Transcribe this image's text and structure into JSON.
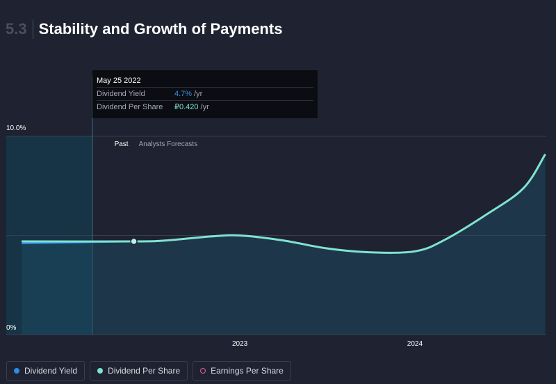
{
  "header": {
    "section_number": "5.3",
    "title": "Stability and Growth of Payments"
  },
  "tooltip": {
    "date": "May 25 2022",
    "rows": [
      {
        "label": "Dividend Yield",
        "value": "4.7%",
        "unit": "/yr"
      },
      {
        "label": "Dividend Per Share",
        "value": "₽0.420",
        "unit": "/yr"
      }
    ]
  },
  "legend": {
    "items": [
      {
        "label": "Dividend Yield",
        "color": "#2f8be3"
      },
      {
        "label": "Dividend Per Share",
        "color": "#7fe3d2"
      },
      {
        "label": "Earnings Per Share",
        "color": "#e0609b"
      }
    ]
  },
  "chart_data": {
    "type": "area",
    "y_ticks": [
      "10.0%",
      "0%"
    ],
    "x_ticks": [
      {
        "label": "2023",
        "date": "2023-01-01"
      },
      {
        "label": "2024",
        "date": "2024-01-01"
      }
    ],
    "regions": {
      "past": "Past",
      "forecast": "Analysts Forecasts",
      "split_date": "2022-05-25"
    },
    "ylim": [
      0,
      10
    ],
    "xlim": [
      "2021-09-01",
      "2024-10-01"
    ],
    "grid": true,
    "series": [
      {
        "name": "Dividend Yield",
        "color": "#2f8be3",
        "points": [
          {
            "date": "2021-10-03",
            "value": 4.6
          },
          {
            "date": "2022-05-25",
            "value": 4.7
          }
        ]
      },
      {
        "name": "Dividend Per Share",
        "color": "#7fe3d2",
        "points": [
          {
            "date": "2021-10-03",
            "value": 4.7
          },
          {
            "date": "2022-05-25",
            "value": 4.7
          },
          {
            "date": "2022-08-01",
            "value": 4.75
          },
          {
            "date": "2022-11-01",
            "value": 4.95
          },
          {
            "date": "2023-01-01",
            "value": 5.0
          },
          {
            "date": "2023-04-01",
            "value": 4.75
          },
          {
            "date": "2023-07-01",
            "value": 4.35
          },
          {
            "date": "2023-10-01",
            "value": 4.15
          },
          {
            "date": "2024-01-01",
            "value": 4.2
          },
          {
            "date": "2024-03-01",
            "value": 4.75
          },
          {
            "date": "2024-06-01",
            "value": 6.1
          },
          {
            "date": "2024-08-15",
            "value": 7.4
          },
          {
            "date": "2024-09-29",
            "value": 9.1
          }
        ]
      }
    ],
    "highlight": {
      "series": "Dividend Per Share",
      "date": "2022-05-25",
      "value": 4.7
    }
  }
}
